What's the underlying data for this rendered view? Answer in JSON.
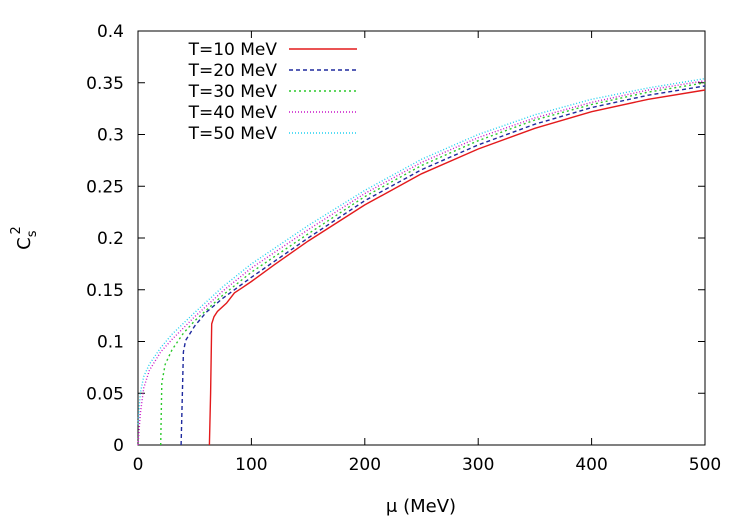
{
  "chart_data": {
    "type": "line",
    "title": "",
    "xlabel": "μ (MeV)",
    "ylabel": {
      "base": "C",
      "sub": "s",
      "sup": "2"
    },
    "xlim": [
      0,
      500
    ],
    "ylim": [
      0,
      0.4
    ],
    "xticks": [
      "0",
      "100",
      "200",
      "300",
      "400",
      "500"
    ],
    "yticks": [
      "0",
      "0.05",
      "0.1",
      "0.15",
      "0.2",
      "0.25",
      "0.3",
      "0.35",
      "0.4"
    ],
    "grid": false,
    "legend_position": "top-left",
    "series": [
      {
        "name": "T=10 MeV",
        "color": "#e31a1c",
        "dash": "solid",
        "points": [
          [
            63,
            0
          ],
          [
            64,
            0.05
          ],
          [
            65,
            0.117
          ],
          [
            67,
            0.124
          ],
          [
            70,
            0.129
          ],
          [
            78,
            0.137
          ],
          [
            85,
            0.147
          ],
          [
            92,
            0.152
          ],
          [
            100,
            0.158
          ],
          [
            120,
            0.174
          ],
          [
            150,
            0.197
          ],
          [
            200,
            0.232
          ],
          [
            250,
            0.262
          ],
          [
            300,
            0.286
          ],
          [
            350,
            0.306
          ],
          [
            400,
            0.322
          ],
          [
            450,
            0.334
          ],
          [
            500,
            0.343
          ]
        ]
      },
      {
        "name": "T=20 MeV",
        "color": "#1f2a9e",
        "dash": "4,3",
        "points": [
          [
            38,
            0
          ],
          [
            40,
            0.09
          ],
          [
            42,
            0.101
          ],
          [
            50,
            0.115
          ],
          [
            60,
            0.128
          ],
          [
            75,
            0.142
          ],
          [
            100,
            0.162
          ],
          [
            150,
            0.2
          ],
          [
            200,
            0.236
          ],
          [
            250,
            0.266
          ],
          [
            300,
            0.29
          ],
          [
            350,
            0.31
          ],
          [
            400,
            0.326
          ],
          [
            450,
            0.338
          ],
          [
            500,
            0.347
          ]
        ]
      },
      {
        "name": "T=30 MeV",
        "color": "#2cc82c",
        "dash": "2,3",
        "points": [
          [
            20,
            0
          ],
          [
            21,
            0.06
          ],
          [
            24,
            0.078
          ],
          [
            30,
            0.092
          ],
          [
            40,
            0.108
          ],
          [
            50,
            0.12
          ],
          [
            75,
            0.145
          ],
          [
            100,
            0.167
          ],
          [
            150,
            0.204
          ],
          [
            200,
            0.24
          ],
          [
            250,
            0.27
          ],
          [
            300,
            0.294
          ],
          [
            350,
            0.314
          ],
          [
            400,
            0.329
          ],
          [
            450,
            0.341
          ],
          [
            500,
            0.35
          ]
        ]
      },
      {
        "name": "T=40 MeV",
        "color": "#c815c8",
        "dash": "1,2",
        "points": [
          [
            0,
            0
          ],
          [
            2,
            0.03
          ],
          [
            5,
            0.055
          ],
          [
            10,
            0.072
          ],
          [
            20,
            0.09
          ],
          [
            30,
            0.102
          ],
          [
            50,
            0.124
          ],
          [
            75,
            0.149
          ],
          [
            100,
            0.171
          ],
          [
            150,
            0.208
          ],
          [
            200,
            0.243
          ],
          [
            250,
            0.273
          ],
          [
            300,
            0.297
          ],
          [
            350,
            0.316
          ],
          [
            400,
            0.331
          ],
          [
            450,
            0.343
          ],
          [
            500,
            0.352
          ]
        ]
      },
      {
        "name": "T=50 MeV",
        "color": "#20d0f0",
        "dash": "1,2",
        "points": [
          [
            0,
            0.02
          ],
          [
            2,
            0.05
          ],
          [
            5,
            0.066
          ],
          [
            10,
            0.078
          ],
          [
            20,
            0.094
          ],
          [
            30,
            0.107
          ],
          [
            50,
            0.128
          ],
          [
            75,
            0.153
          ],
          [
            100,
            0.175
          ],
          [
            150,
            0.212
          ],
          [
            200,
            0.246
          ],
          [
            250,
            0.276
          ],
          [
            300,
            0.3
          ],
          [
            350,
            0.319
          ],
          [
            400,
            0.334
          ],
          [
            450,
            0.345
          ],
          [
            500,
            0.354
          ]
        ]
      }
    ]
  }
}
